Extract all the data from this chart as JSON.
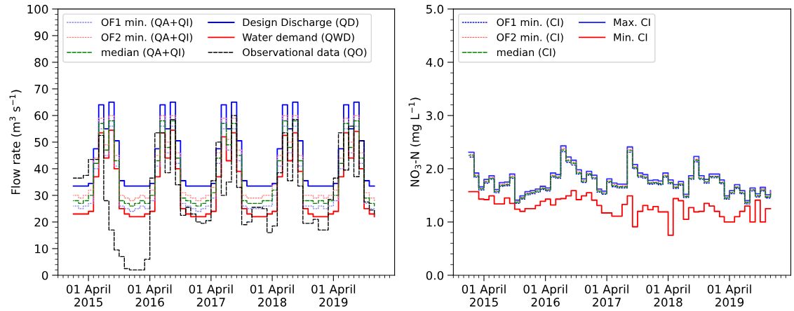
{
  "chart_data": [
    {
      "type": "step",
      "ylabel": "Flow rate (m$^{3}$ s$^{−1}$)",
      "legend": "top left",
      "x": [
        "2015-01",
        "2015-02",
        "2015-03",
        "2015-04",
        "2015-05",
        "2015-06",
        "2015-07",
        "2015-08",
        "2015-09",
        "2015-10",
        "2015-11",
        "2015-12",
        "2016-01",
        "2016-02",
        "2016-03",
        "2016-04",
        "2016-05",
        "2016-06",
        "2016-07",
        "2016-08",
        "2016-09",
        "2016-10",
        "2016-11",
        "2016-12",
        "2017-01",
        "2017-02",
        "2017-03",
        "2017-04",
        "2017-05",
        "2017-06",
        "2017-07",
        "2017-08",
        "2017-09",
        "2017-10",
        "2017-11",
        "2017-12",
        "2018-01",
        "2018-02",
        "2018-03",
        "2018-04",
        "2018-05",
        "2018-06",
        "2018-07",
        "2018-08",
        "2018-09",
        "2018-10",
        "2018-11",
        "2018-12",
        "2019-01",
        "2019-02",
        "2019-03",
        "2019-04",
        "2019-05",
        "2019-06",
        "2019-07",
        "2019-08",
        "2019-09",
        "2019-10",
        "2019-11",
        "2019-12"
      ],
      "xlim": [
        "2014-10-01",
        "2020-03-31"
      ],
      "xticks": [
        {
          "value": "2015-04-01",
          "label": "01 April\n2015"
        },
        {
          "value": "2016-04-01",
          "label": "01 April\n2016"
        },
        {
          "value": "2017-04-01",
          "label": "01 April\n2017"
        },
        {
          "value": "2018-04-01",
          "label": "01 April\n2018"
        },
        {
          "value": "2019-04-01",
          "label": "01 April\n2019"
        }
      ],
      "ylim": [
        0,
        100
      ],
      "yticks": [
        0,
        10,
        20,
        30,
        40,
        50,
        60,
        70,
        80,
        90,
        100
      ],
      "series": [
        {
          "name": "OF1 min. (QA+QI)",
          "color": "#7f7fff",
          "line_style": "dotted",
          "values": [
            26,
            25,
            26,
            27,
            40,
            55,
            45,
            56,
            41,
            26,
            25,
            24,
            25,
            26,
            25,
            28,
            41,
            56,
            46,
            56,
            42,
            27,
            26,
            25,
            24,
            25,
            26,
            29,
            42,
            55,
            47,
            55,
            43,
            26,
            25,
            25,
            25,
            26,
            26,
            30,
            41,
            56,
            46,
            56,
            41,
            26,
            26,
            25,
            26,
            25,
            26,
            28,
            40,
            55,
            46,
            56,
            42,
            27,
            25,
            24
          ]
        },
        {
          "name": "OF2 min. (QA+QI)",
          "color": "#ff8080",
          "line_style": "dotted",
          "values": [
            30,
            29,
            30,
            32,
            44,
            59,
            49,
            60,
            45,
            30,
            29,
            28,
            29,
            30,
            29,
            32,
            45,
            60,
            50,
            60,
            46,
            31,
            30,
            29,
            28,
            29,
            30,
            33,
            46,
            59,
            51,
            59,
            47,
            30,
            29,
            29,
            29,
            30,
            30,
            34,
            45,
            60,
            50,
            60,
            45,
            30,
            30,
            29,
            30,
            29,
            30,
            32,
            44,
            59,
            50,
            60,
            46,
            31,
            29,
            28
          ]
        },
        {
          "name": "median (QA+QI)",
          "color": "#008000",
          "line_style": "dashed",
          "values": [
            28,
            27,
            28,
            30,
            42,
            57,
            47,
            58,
            43,
            28,
            27,
            26,
            27,
            28,
            27,
            30,
            43,
            58,
            48,
            58,
            44,
            29,
            28,
            27,
            26,
            27,
            28,
            31,
            44,
            57,
            49,
            57,
            45,
            28,
            27,
            27,
            27,
            28,
            28,
            32,
            43,
            58,
            48,
            58,
            43,
            28,
            28,
            27,
            28,
            27,
            28,
            30,
            42,
            57,
            48,
            58,
            44,
            29,
            27,
            26
          ]
        },
        {
          "name": "Design Discharge (QD)",
          "color": "#0000ff",
          "line_style": "solid",
          "values": [
            33.5,
            33.5,
            33.5,
            34.5,
            47.5,
            64,
            55,
            65,
            50.5,
            35.5,
            33.5,
            33.5,
            33.5,
            33.5,
            33.5,
            34.5,
            47.5,
            64,
            55,
            65,
            50.5,
            35.5,
            33.5,
            33.5,
            33.5,
            33.5,
            33.5,
            34.5,
            47.5,
            64,
            55,
            65,
            50.5,
            35.5,
            33.5,
            33.5,
            33.5,
            33.5,
            33.5,
            34.5,
            47.5,
            64,
            55,
            65,
            50.5,
            35.5,
            33.5,
            33.5,
            33.5,
            33.5,
            33.5,
            34.5,
            47.5,
            64,
            55,
            65,
            50.5,
            35.5,
            33.5,
            33.5
          ]
        },
        {
          "name": "Water demand (QWD)",
          "color": "#ff0000",
          "line_style": "solid",
          "values": [
            23,
            23,
            23,
            24,
            37,
            53.5,
            44,
            54.5,
            40,
            25,
            23,
            22,
            22,
            22,
            23,
            24,
            37,
            53.5,
            44,
            54.5,
            40,
            25,
            23,
            22,
            22,
            22,
            23,
            24,
            37,
            52,
            43,
            53.5,
            39,
            25,
            23,
            22,
            22,
            22,
            23,
            24,
            37,
            52.5,
            43,
            53.5,
            39,
            25,
            23,
            22,
            22,
            22,
            23,
            24,
            37,
            53.5,
            44,
            54,
            40,
            25,
            23,
            22
          ]
        },
        {
          "name": "Observational data (QO)",
          "color": "#000000",
          "line_style": "dashed",
          "values": [
            36.5,
            36.5,
            37.5,
            43.5,
            43.5,
            52.5,
            28,
            17,
            9.5,
            7,
            2.5,
            2,
            2,
            2,
            6,
            36.5,
            53.5,
            53.5,
            38.5,
            58.5,
            34,
            22.5,
            25.5,
            23,
            20,
            19.5,
            20.5,
            35.5,
            50,
            30,
            35,
            60,
            33,
            19,
            20,
            25.5,
            25.5,
            25,
            16,
            18.5,
            38.5,
            53.5,
            35.5,
            58.5,
            33.5,
            19.5,
            19.5,
            21,
            17,
            17,
            28.5,
            36.5,
            53.5,
            39.5,
            56,
            37,
            50.5,
            27.5,
            24.5,
            23
          ]
        }
      ]
    },
    {
      "type": "step",
      "ylabel": "NO$_{3}$-N (mg L$^{−1}$)",
      "legend": "top left",
      "x": [
        "2015-01",
        "2015-02",
        "2015-03",
        "2015-04",
        "2015-05",
        "2015-06",
        "2015-07",
        "2015-08",
        "2015-09",
        "2015-10",
        "2015-11",
        "2015-12",
        "2016-01",
        "2016-02",
        "2016-03",
        "2016-04",
        "2016-05",
        "2016-06",
        "2016-07",
        "2016-08",
        "2016-09",
        "2016-10",
        "2016-11",
        "2016-12",
        "2017-01",
        "2017-02",
        "2017-03",
        "2017-04",
        "2017-05",
        "2017-06",
        "2017-07",
        "2017-08",
        "2017-09",
        "2017-10",
        "2017-11",
        "2017-12",
        "2018-01",
        "2018-02",
        "2018-03",
        "2018-04",
        "2018-05",
        "2018-06",
        "2018-07",
        "2018-08",
        "2018-09",
        "2018-10",
        "2018-11",
        "2018-12",
        "2019-01",
        "2019-02",
        "2019-03",
        "2019-04",
        "2019-05",
        "2019-06",
        "2019-07",
        "2019-08",
        "2019-09",
        "2019-10",
        "2019-11",
        "2019-12"
      ],
      "xlim": [
        "2014-10-01",
        "2020-03-31"
      ],
      "xticks": [
        {
          "value": "2015-04-01",
          "label": "01 April\n2015"
        },
        {
          "value": "2016-04-01",
          "label": "01 April\n2016"
        },
        {
          "value": "2017-04-01",
          "label": "01 April\n2017"
        },
        {
          "value": "2018-04-01",
          "label": "01 April\n2018"
        },
        {
          "value": "2019-04-01",
          "label": "01 April\n2019"
        }
      ],
      "ylim": [
        0,
        5
      ],
      "yticks": [
        {
          "value": 0,
          "label": "0.0"
        },
        {
          "value": 1,
          "label": "1.0"
        },
        {
          "value": 2,
          "label": "2.0"
        },
        {
          "value": 3,
          "label": "3.0"
        },
        {
          "value": 4,
          "label": "4.0"
        },
        {
          "value": 5,
          "label": "5.0"
        }
      ],
      "series": [
        {
          "name": "OF1 min. (CI)",
          "color": "#0000ff",
          "line_style": "dotted",
          "values": [
            2.22,
            1.84,
            1.6,
            1.73,
            1.8,
            1.55,
            1.67,
            1.68,
            1.82,
            1.35,
            1.43,
            1.51,
            1.53,
            1.56,
            1.61,
            1.58,
            1.84,
            1.82,
            2.32,
            2.12,
            2.07,
            1.9,
            1.74,
            1.88,
            1.81,
            1.56,
            1.52,
            1.74,
            1.66,
            1.64,
            1.64,
            2.31,
            2.0,
            1.84,
            1.82,
            1.71,
            1.72,
            1.7,
            1.84,
            1.72,
            1.63,
            1.69,
            1.46,
            1.8,
            2.13,
            1.8,
            1.73,
            1.83,
            1.83,
            1.72,
            1.43,
            1.53,
            1.63,
            1.53,
            1.34,
            1.58,
            1.47,
            1.58,
            1.45,
            1.49
          ]
        },
        {
          "name": "OF2 min. (CI)",
          "color": "#ff6060",
          "line_style": "dotted",
          "values": [
            2.27,
            1.88,
            1.63,
            1.77,
            1.84,
            1.58,
            1.71,
            1.72,
            1.86,
            1.38,
            1.46,
            1.54,
            1.56,
            1.59,
            1.64,
            1.61,
            1.88,
            1.85,
            2.38,
            2.17,
            2.12,
            1.94,
            1.78,
            1.91,
            1.84,
            1.59,
            1.55,
            1.77,
            1.7,
            1.67,
            1.68,
            2.36,
            2.04,
            1.88,
            1.85,
            1.74,
            1.75,
            1.73,
            1.88,
            1.75,
            1.66,
            1.72,
            1.49,
            1.83,
            2.18,
            1.83,
            1.76,
            1.86,
            1.86,
            1.75,
            1.46,
            1.56,
            1.66,
            1.56,
            1.37,
            1.61,
            1.5,
            1.62,
            1.48,
            1.57
          ]
        },
        {
          "name": "median (CI)",
          "color": "#008000",
          "line_style": "dashed",
          "values": [
            2.25,
            1.86,
            1.62,
            1.75,
            1.82,
            1.57,
            1.69,
            1.7,
            1.84,
            1.37,
            1.45,
            1.53,
            1.55,
            1.58,
            1.63,
            1.6,
            1.86,
            1.84,
            2.35,
            2.15,
            2.1,
            1.92,
            1.76,
            1.9,
            1.83,
            1.58,
            1.54,
            1.76,
            1.68,
            1.66,
            1.66,
            2.34,
            2.02,
            1.86,
            1.84,
            1.73,
            1.74,
            1.72,
            1.86,
            1.74,
            1.65,
            1.71,
            1.48,
            1.82,
            2.16,
            1.82,
            1.75,
            1.85,
            1.85,
            1.74,
            1.45,
            1.55,
            1.65,
            1.55,
            1.36,
            1.6,
            1.49,
            1.6,
            1.47,
            1.53
          ]
        },
        {
          "name": "Max. CI",
          "color": "#3333ff",
          "line_style": "solid",
          "values": [
            2.31,
            1.92,
            1.66,
            1.8,
            1.87,
            1.61,
            1.74,
            1.75,
            1.9,
            1.41,
            1.49,
            1.57,
            1.59,
            1.62,
            1.67,
            1.64,
            1.92,
            1.89,
            2.43,
            2.22,
            2.16,
            1.98,
            1.81,
            1.95,
            1.88,
            1.62,
            1.58,
            1.81,
            1.73,
            1.71,
            1.71,
            2.41,
            2.08,
            1.92,
            1.89,
            1.78,
            1.79,
            1.77,
            1.92,
            1.79,
            1.7,
            1.76,
            1.52,
            1.87,
            2.23,
            1.87,
            1.8,
            1.9,
            1.9,
            1.79,
            1.49,
            1.59,
            1.7,
            1.59,
            1.4,
            1.64,
            1.53,
            1.65,
            1.51,
            1.59
          ]
        },
        {
          "name": "Min. CI",
          "color": "#ff0000",
          "line_style": "solid",
          "values": [
            1.57,
            1.57,
            1.43,
            1.42,
            1.49,
            1.34,
            1.34,
            1.45,
            1.35,
            1.24,
            1.2,
            1.25,
            1.25,
            1.31,
            1.39,
            1.43,
            1.32,
            1.43,
            1.44,
            1.49,
            1.59,
            1.42,
            1.49,
            1.55,
            1.41,
            1.31,
            1.17,
            1.17,
            1.11,
            1.11,
            1.33,
            1.49,
            0.91,
            1.2,
            1.31,
            1.23,
            1.29,
            1.19,
            1.19,
            0.75,
            1.44,
            1.4,
            1.05,
            1.27,
            1.19,
            1.2,
            1.35,
            1.3,
            1.2,
            1.1,
            1.0,
            1.0,
            1.1,
            1.2,
            1.3,
            1.0,
            1.41,
            1.0,
            1.25,
            1.25
          ]
        }
      ]
    }
  ]
}
